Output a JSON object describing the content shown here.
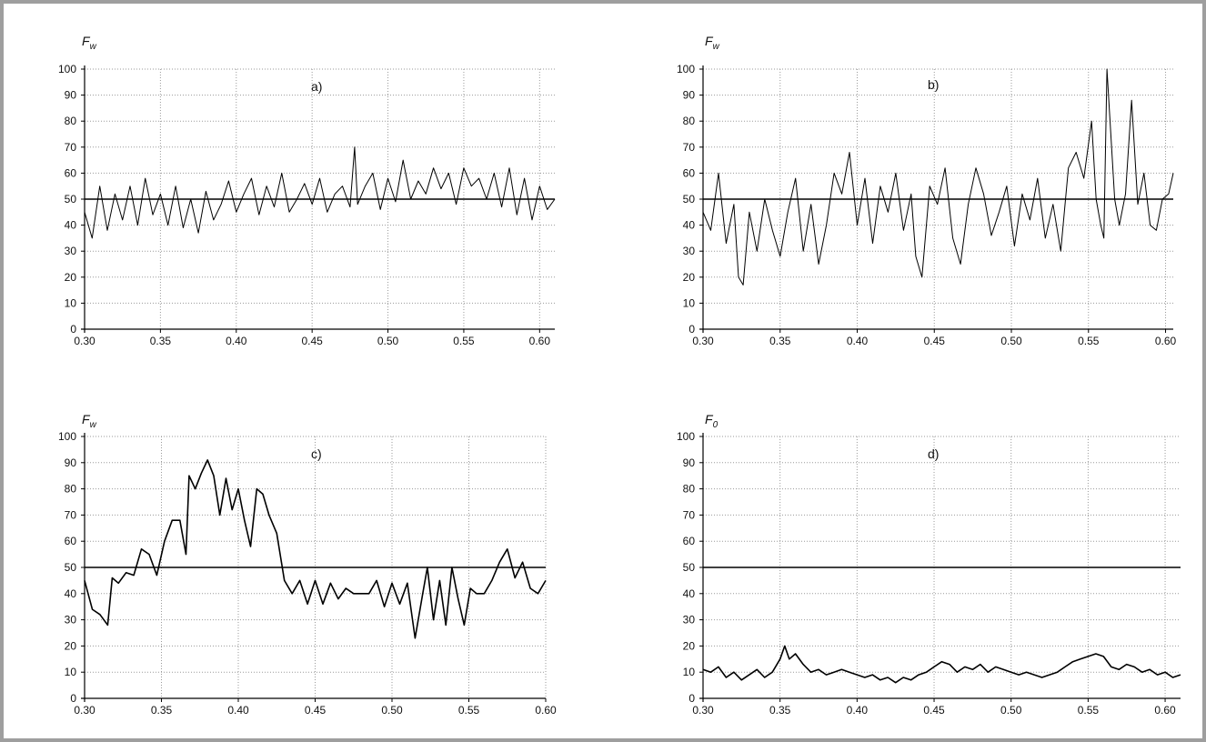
{
  "chart_data": [
    {
      "type": "line",
      "panel_label": "a)",
      "ylabel": "F",
      "ylabel_sub": "w",
      "xlim": [
        0.3,
        0.61
      ],
      "ylim": [
        0,
        100
      ],
      "x_ticks": [
        "0.30",
        "0.35",
        "0.40",
        "0.45",
        "0.50",
        "0.55",
        "0.60"
      ],
      "y_ticks": [
        "0",
        "10",
        "20",
        "30",
        "40",
        "50",
        "60",
        "70",
        "80",
        "90",
        "100"
      ],
      "grid": true,
      "reference_line": 50,
      "series": [
        {
          "x": [
            0.3,
            0.305,
            0.31,
            0.315,
            0.32,
            0.325,
            0.33,
            0.335,
            0.34,
            0.345,
            0.35,
            0.355,
            0.36,
            0.365,
            0.37,
            0.375,
            0.38,
            0.385,
            0.39,
            0.395,
            0.4,
            0.405,
            0.41,
            0.415,
            0.42,
            0.425,
            0.43,
            0.435,
            0.44,
            0.445,
            0.45,
            0.455,
            0.46,
            0.465,
            0.47,
            0.475,
            0.478,
            0.48,
            0.485,
            0.49,
            0.495,
            0.5,
            0.505,
            0.51,
            0.515,
            0.52,
            0.525,
            0.53,
            0.535,
            0.54,
            0.545,
            0.55,
            0.555,
            0.56,
            0.565,
            0.57,
            0.575,
            0.58,
            0.585,
            0.59,
            0.595,
            0.6,
            0.605,
            0.61
          ],
          "y": [
            45,
            35,
            55,
            38,
            52,
            42,
            55,
            40,
            58,
            44,
            52,
            40,
            55,
            39,
            50,
            37,
            53,
            42,
            48,
            57,
            45,
            52,
            58,
            44,
            55,
            47,
            60,
            45,
            50,
            56,
            48,
            58,
            45,
            52,
            55,
            47,
            70,
            48,
            55,
            60,
            46,
            58,
            49,
            65,
            50,
            57,
            52,
            62,
            54,
            60,
            48,
            62,
            55,
            58,
            50,
            60,
            47,
            62,
            44,
            58,
            42,
            55,
            46,
            50
          ]
        }
      ]
    },
    {
      "type": "line",
      "panel_label": "b)",
      "ylabel": "F",
      "ylabel_sub": "w",
      "xlim": [
        0.3,
        0.605
      ],
      "ylim": [
        0,
        100
      ],
      "x_ticks": [
        "0.30",
        "0.35",
        "0.40",
        "0.45",
        "0.50",
        "0.55",
        "0.60"
      ],
      "y_ticks": [
        "0",
        "10",
        "20",
        "30",
        "40",
        "50",
        "60",
        "70",
        "80",
        "90",
        "100"
      ],
      "grid": true,
      "reference_line": 50,
      "series": [
        {
          "x": [
            0.3,
            0.305,
            0.31,
            0.315,
            0.32,
            0.323,
            0.326,
            0.33,
            0.335,
            0.34,
            0.345,
            0.35,
            0.355,
            0.36,
            0.365,
            0.37,
            0.375,
            0.38,
            0.385,
            0.39,
            0.395,
            0.4,
            0.405,
            0.41,
            0.415,
            0.42,
            0.425,
            0.43,
            0.435,
            0.438,
            0.442,
            0.447,
            0.452,
            0.457,
            0.462,
            0.467,
            0.472,
            0.477,
            0.482,
            0.487,
            0.492,
            0.497,
            0.502,
            0.507,
            0.512,
            0.517,
            0.522,
            0.527,
            0.532,
            0.537,
            0.542,
            0.547,
            0.552,
            0.555,
            0.558,
            0.56,
            0.562,
            0.564,
            0.567,
            0.57,
            0.574,
            0.578,
            0.582,
            0.586,
            0.59,
            0.594,
            0.598,
            0.602,
            0.605
          ],
          "y": [
            45,
            38,
            60,
            33,
            48,
            20,
            17,
            45,
            30,
            50,
            38,
            28,
            45,
            58,
            30,
            48,
            25,
            40,
            60,
            52,
            68,
            40,
            58,
            33,
            55,
            45,
            60,
            38,
            52,
            28,
            20,
            55,
            48,
            62,
            35,
            25,
            48,
            62,
            52,
            36,
            45,
            55,
            32,
            52,
            42,
            58,
            35,
            48,
            30,
            62,
            68,
            58,
            80,
            50,
            40,
            35,
            100,
            80,
            50,
            40,
            52,
            88,
            48,
            60,
            40,
            38,
            50,
            52,
            60
          ]
        }
      ]
    },
    {
      "type": "line",
      "panel_label": "c)",
      "ylabel": "F",
      "ylabel_sub": "w",
      "xlim": [
        0.3,
        0.6
      ],
      "ylim": [
        0,
        100
      ],
      "x_ticks": [
        "0.30",
        "0.35",
        "0.40",
        "0.45",
        "0.50",
        "0.55",
        "0.60"
      ],
      "y_ticks": [
        "0",
        "10",
        "20",
        "30",
        "40",
        "50",
        "60",
        "70",
        "80",
        "90",
        "100"
      ],
      "grid": true,
      "reference_line": 50,
      "series": [
        {
          "x": [
            0.3,
            0.305,
            0.31,
            0.315,
            0.318,
            0.322,
            0.327,
            0.332,
            0.337,
            0.342,
            0.347,
            0.352,
            0.357,
            0.362,
            0.366,
            0.368,
            0.372,
            0.376,
            0.38,
            0.384,
            0.388,
            0.392,
            0.396,
            0.4,
            0.404,
            0.408,
            0.412,
            0.416,
            0.42,
            0.425,
            0.43,
            0.435,
            0.44,
            0.445,
            0.45,
            0.455,
            0.46,
            0.465,
            0.47,
            0.475,
            0.48,
            0.485,
            0.49,
            0.495,
            0.5,
            0.505,
            0.51,
            0.515,
            0.52,
            0.523,
            0.527,
            0.531,
            0.535,
            0.539,
            0.543,
            0.547,
            0.551,
            0.555,
            0.56,
            0.565,
            0.57,
            0.575,
            0.58,
            0.585,
            0.59,
            0.595,
            0.6
          ],
          "y": [
            45,
            34,
            32,
            28,
            46,
            44,
            48,
            47,
            57,
            55,
            47,
            60,
            68,
            68,
            55,
            85,
            80,
            86,
            91,
            85,
            70,
            84,
            72,
            80,
            68,
            58,
            80,
            78,
            70,
            63,
            45,
            40,
            45,
            36,
            45,
            36,
            44,
            38,
            42,
            40,
            40,
            40,
            45,
            35,
            44,
            36,
            44,
            23,
            40,
            50,
            30,
            45,
            28,
            50,
            38,
            28,
            42,
            40,
            40,
            45,
            52,
            57,
            46,
            52,
            42,
            40,
            45
          ]
        }
      ]
    },
    {
      "type": "line",
      "panel_label": "d)",
      "ylabel": "F",
      "ylabel_sub": "0",
      "xlim": [
        0.3,
        0.61
      ],
      "ylim": [
        0,
        100
      ],
      "x_ticks": [
        "0.30",
        "0.35",
        "0.40",
        "0.45",
        "0.50",
        "0.55",
        "0.60"
      ],
      "y_ticks": [
        "0",
        "10",
        "20",
        "30",
        "40",
        "50",
        "60",
        "70",
        "80",
        "90",
        "100"
      ],
      "grid": true,
      "reference_line": 50,
      "series": [
        {
          "x": [
            0.3,
            0.305,
            0.31,
            0.315,
            0.32,
            0.325,
            0.33,
            0.335,
            0.34,
            0.345,
            0.35,
            0.353,
            0.356,
            0.36,
            0.365,
            0.37,
            0.375,
            0.38,
            0.385,
            0.39,
            0.395,
            0.4,
            0.405,
            0.41,
            0.415,
            0.42,
            0.425,
            0.43,
            0.435,
            0.44,
            0.445,
            0.45,
            0.455,
            0.46,
            0.465,
            0.47,
            0.475,
            0.48,
            0.485,
            0.49,
            0.495,
            0.5,
            0.505,
            0.51,
            0.515,
            0.52,
            0.525,
            0.53,
            0.535,
            0.54,
            0.545,
            0.55,
            0.555,
            0.56,
            0.565,
            0.57,
            0.575,
            0.58,
            0.585,
            0.59,
            0.595,
            0.6,
            0.605,
            0.61
          ],
          "y": [
            11,
            10,
            12,
            8,
            10,
            7,
            9,
            11,
            8,
            10,
            15,
            20,
            15,
            17,
            13,
            10,
            11,
            9,
            10,
            11,
            10,
            9,
            8,
            9,
            7,
            8,
            6,
            8,
            7,
            9,
            10,
            12,
            14,
            13,
            10,
            12,
            11,
            13,
            10,
            12,
            11,
            10,
            9,
            10,
            9,
            8,
            9,
            10,
            12,
            14,
            15,
            16,
            17,
            16,
            12,
            11,
            13,
            12,
            10,
            11,
            9,
            10,
            8,
            9
          ]
        }
      ]
    }
  ]
}
